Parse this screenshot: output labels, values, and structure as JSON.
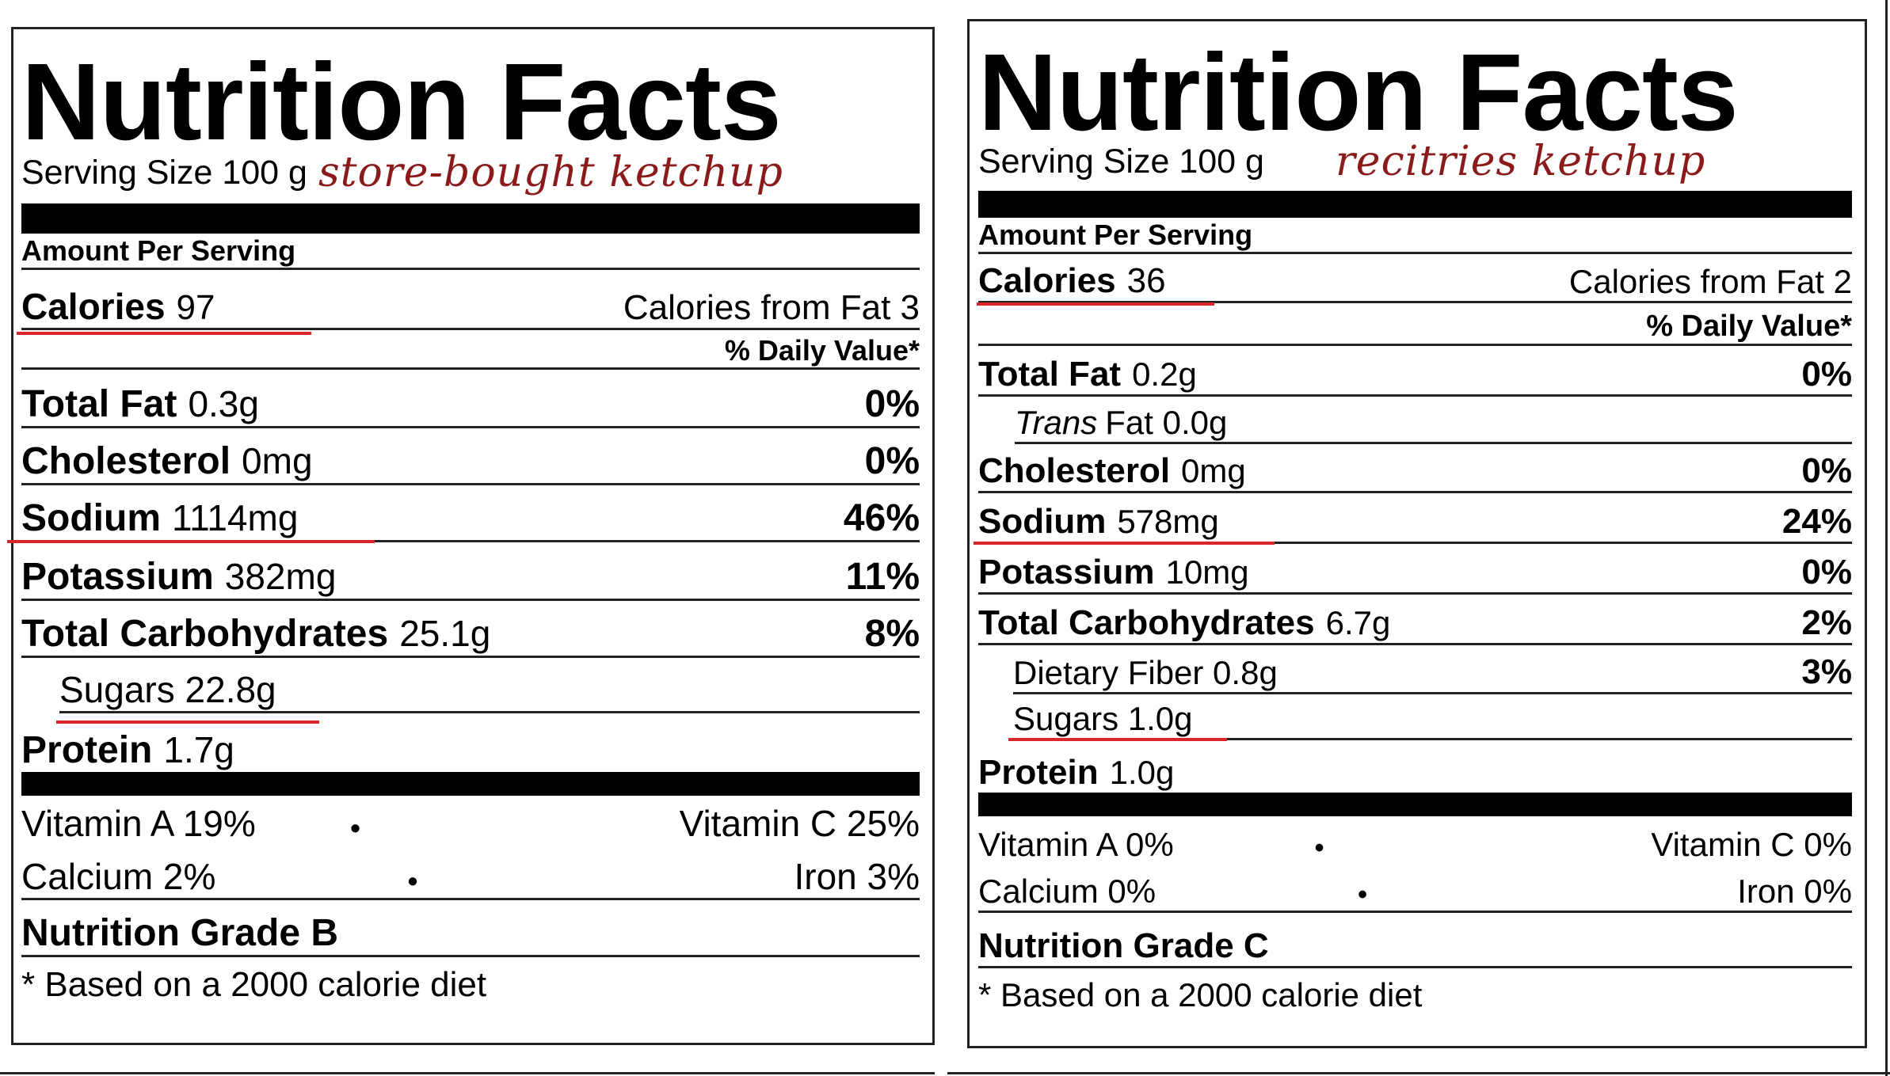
{
  "left": {
    "title": "Nutrition Facts",
    "serving": "Serving Size 100 g",
    "note": "store-bought ketchup",
    "amount_per_serving": "Amount Per Serving",
    "calories_label": "Calories",
    "calories_value": "97",
    "calories_from_fat": "Calories from Fat 3",
    "daily_value": "% Daily Value*",
    "nutrients": [
      {
        "label": "Total Fat",
        "value": "0.3g",
        "pct": "0%"
      },
      {
        "label": "Cholesterol",
        "value": "0mg",
        "pct": "0%"
      },
      {
        "label": "Sodium",
        "value": "1114mg",
        "pct": "46%"
      },
      {
        "label": "Potassium",
        "value": "382mg",
        "pct": "11%"
      },
      {
        "label": "Total Carbohydrates",
        "value": "25.1g",
        "pct": "8%"
      },
      {
        "label": "Sugars 22.8g",
        "value": "",
        "pct": ""
      },
      {
        "label": "Protein",
        "value": "1.7g",
        "pct": ""
      }
    ],
    "vitamins": [
      {
        "left": "Vitamin A 19%",
        "dot": "•",
        "right": "Vitamin C 25%"
      },
      {
        "left": "Calcium 2%",
        "dot": "•",
        "right": "Iron 3%"
      }
    ],
    "grade": "Nutrition Grade B",
    "footnote": "* Based on a 2000 calorie diet"
  },
  "right": {
    "title": "Nutrition Facts",
    "serving": "Serving Size 100 g",
    "note": "recitries ketchup",
    "amount_per_serving": "Amount Per Serving",
    "calories_label": "Calories",
    "calories_value": "36",
    "calories_from_fat": "Calories from Fat 2",
    "daily_value": "% Daily Value*",
    "total_fat": {
      "label": "Total Fat",
      "value": "0.2g",
      "pct": "0%"
    },
    "trans_fat": {
      "italic": "Trans",
      "rest": "Fat 0.0g"
    },
    "nutrients": [
      {
        "label": "Cholesterol",
        "value": "0mg",
        "pct": "0%"
      },
      {
        "label": "Sodium",
        "value": "578mg",
        "pct": "24%"
      },
      {
        "label": "Potassium",
        "value": "10mg",
        "pct": "0%"
      },
      {
        "label": "Total Carbohydrates",
        "value": "6.7g",
        "pct": "2%"
      }
    ],
    "dietary_fiber": {
      "label": "Dietary Fiber 0.8g",
      "pct": "3%"
    },
    "sugars": "Sugars 1.0g",
    "protein": {
      "label": "Protein",
      "value": "1.0g"
    },
    "vitamins": [
      {
        "left": "Vitamin A 0%",
        "dot": "•",
        "right": "Vitamin C 0%"
      },
      {
        "left": "Calcium 0%",
        "dot": "•",
        "right": "Iron 0%"
      }
    ],
    "grade": "Nutrition Grade C",
    "footnote": "* Based on a 2000 calorie diet"
  }
}
